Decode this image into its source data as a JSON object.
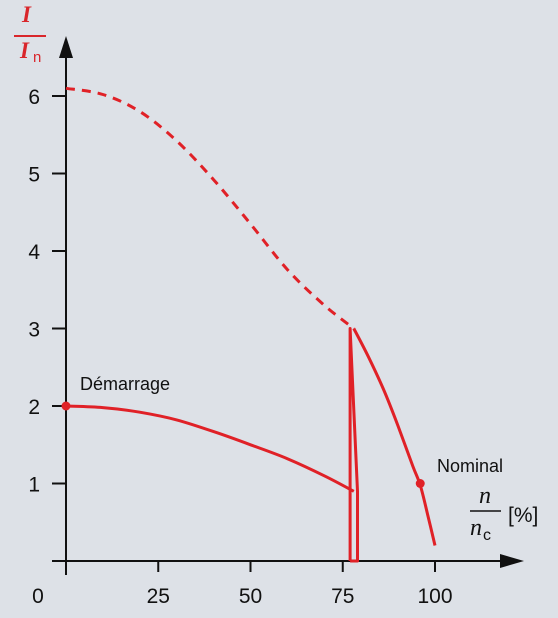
{
  "chart_data": {
    "type": "line",
    "ylabel": {
      "main": "I",
      "denominator": "I",
      "sub": "n"
    },
    "xlabel": {
      "main": "n",
      "denominator": "n",
      "sub": "c",
      "unit": "[%]"
    },
    "x_ticks": [
      "0",
      "25",
      "50",
      "75",
      "100"
    ],
    "y_ticks": [
      "1",
      "2",
      "3",
      "4",
      "5",
      "6"
    ],
    "xlim": [
      0,
      125
    ],
    "ylim": [
      0,
      6.7
    ],
    "colors": {
      "curve": "#e02127",
      "axis": "#111111",
      "background": "#dde1e7"
    },
    "series": [
      {
        "style": "dashed",
        "x": [
          0,
          10,
          20,
          30,
          40,
          50,
          60,
          70,
          78
        ],
        "y": [
          6.1,
          6.02,
          5.8,
          5.42,
          4.92,
          4.35,
          3.76,
          3.3,
          3.0
        ]
      },
      {
        "style": "solid",
        "x": [
          78,
          82,
          86,
          90,
          94,
          96,
          98,
          100
        ],
        "y": [
          3.0,
          2.63,
          2.22,
          1.74,
          1.22,
          0.98,
          0.6,
          0.2
        ]
      },
      {
        "style": "solid",
        "x": [
          0,
          10,
          20,
          30,
          40,
          50,
          60,
          70,
          78
        ],
        "y": [
          2.0,
          1.98,
          1.92,
          1.82,
          1.67,
          1.5,
          1.32,
          1.1,
          0.9
        ]
      },
      {
        "style": "solid",
        "x": [
          77,
          77,
          79,
          79,
          77
        ],
        "y": [
          0,
          3.0,
          0.9,
          0,
          0
        ]
      }
    ],
    "points": [
      {
        "x": 0,
        "y": 2.0,
        "label": "Démarrage"
      },
      {
        "x": 96,
        "y": 1.0,
        "label": "Nominal"
      }
    ]
  }
}
